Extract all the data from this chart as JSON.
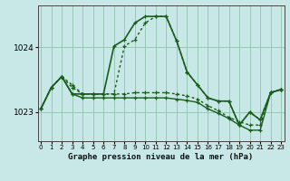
{
  "background_color": "#c8e8e8",
  "grid_color": "#98c8b8",
  "line_color": "#1a5c1a",
  "title": "Graphe pression niveau de la mer (hPa)",
  "ylim": [
    1022.55,
    1024.65
  ],
  "yticks": [
    1023,
    1024
  ],
  "xlim": [
    -0.3,
    23.3
  ],
  "xticks": [
    0,
    1,
    2,
    3,
    4,
    5,
    6,
    7,
    8,
    9,
    10,
    11,
    12,
    13,
    14,
    15,
    16,
    17,
    18,
    19,
    20,
    21,
    22,
    23
  ],
  "series": [
    {
      "x": [
        0,
        1,
        2,
        3,
        4,
        5,
        6,
        7,
        8,
        9,
        10,
        11,
        12,
        13,
        14,
        15,
        16,
        17,
        18,
        19,
        20,
        21,
        22,
        23
      ],
      "y": [
        1023.05,
        1023.38,
        1023.55,
        1023.28,
        1023.28,
        1023.28,
        1023.28,
        1024.02,
        1024.12,
        1024.38,
        1024.48,
        1024.48,
        1024.48,
        1024.1,
        1023.62,
        1023.42,
        1023.22,
        1023.17,
        1023.17,
        1022.8,
        1023.0,
        1022.88,
        1023.3,
        1023.35
      ],
      "linestyle": "-",
      "linewidth": 1.2
    },
    {
      "x": [
        2,
        3,
        4,
        5,
        6,
        7,
        8,
        9,
        10,
        11,
        12,
        13,
        14,
        15,
        16,
        17,
        18,
        19,
        20,
        21,
        22,
        23
      ],
      "y": [
        1023.55,
        1023.42,
        1023.28,
        1023.28,
        1023.28,
        1023.28,
        1024.02,
        1024.12,
        1024.38,
        1024.48,
        1024.48,
        1024.1,
        1023.62,
        1023.42,
        1023.22,
        1023.17,
        1023.17,
        1022.8,
        1023.0,
        1022.88,
        1023.3,
        1023.35
      ],
      "linestyle": "dotted",
      "linewidth": 1.0
    },
    {
      "x": [
        0,
        1,
        2,
        3,
        4,
        5,
        6,
        7,
        8,
        9,
        10,
        11,
        12,
        13,
        14,
        15,
        16,
        17,
        18,
        19,
        20,
        21,
        22,
        23
      ],
      "y": [
        1023.05,
        1023.38,
        1023.55,
        1023.28,
        1023.22,
        1023.22,
        1023.22,
        1023.22,
        1023.22,
        1023.22,
        1023.22,
        1023.22,
        1023.22,
        1023.2,
        1023.18,
        1023.15,
        1023.05,
        1022.98,
        1022.9,
        1022.8,
        1022.72,
        1022.72,
        1023.3,
        1023.35
      ],
      "linestyle": "-",
      "linewidth": 1.0
    },
    {
      "x": [
        0,
        1,
        2,
        3,
        4,
        5,
        6,
        7,
        8,
        9,
        10,
        11,
        12,
        13,
        14,
        15,
        16,
        17,
        18,
        19,
        20,
        21,
        22,
        23
      ],
      "y": [
        1023.05,
        1023.38,
        1023.55,
        1023.38,
        1023.28,
        1023.28,
        1023.28,
        1023.28,
        1023.28,
        1023.3,
        1023.3,
        1023.3,
        1023.3,
        1023.28,
        1023.25,
        1023.2,
        1023.1,
        1023.02,
        1022.92,
        1022.85,
        1022.8,
        1022.8,
        1023.3,
        1023.35
      ],
      "linestyle": "dotted",
      "linewidth": 1.0
    }
  ]
}
